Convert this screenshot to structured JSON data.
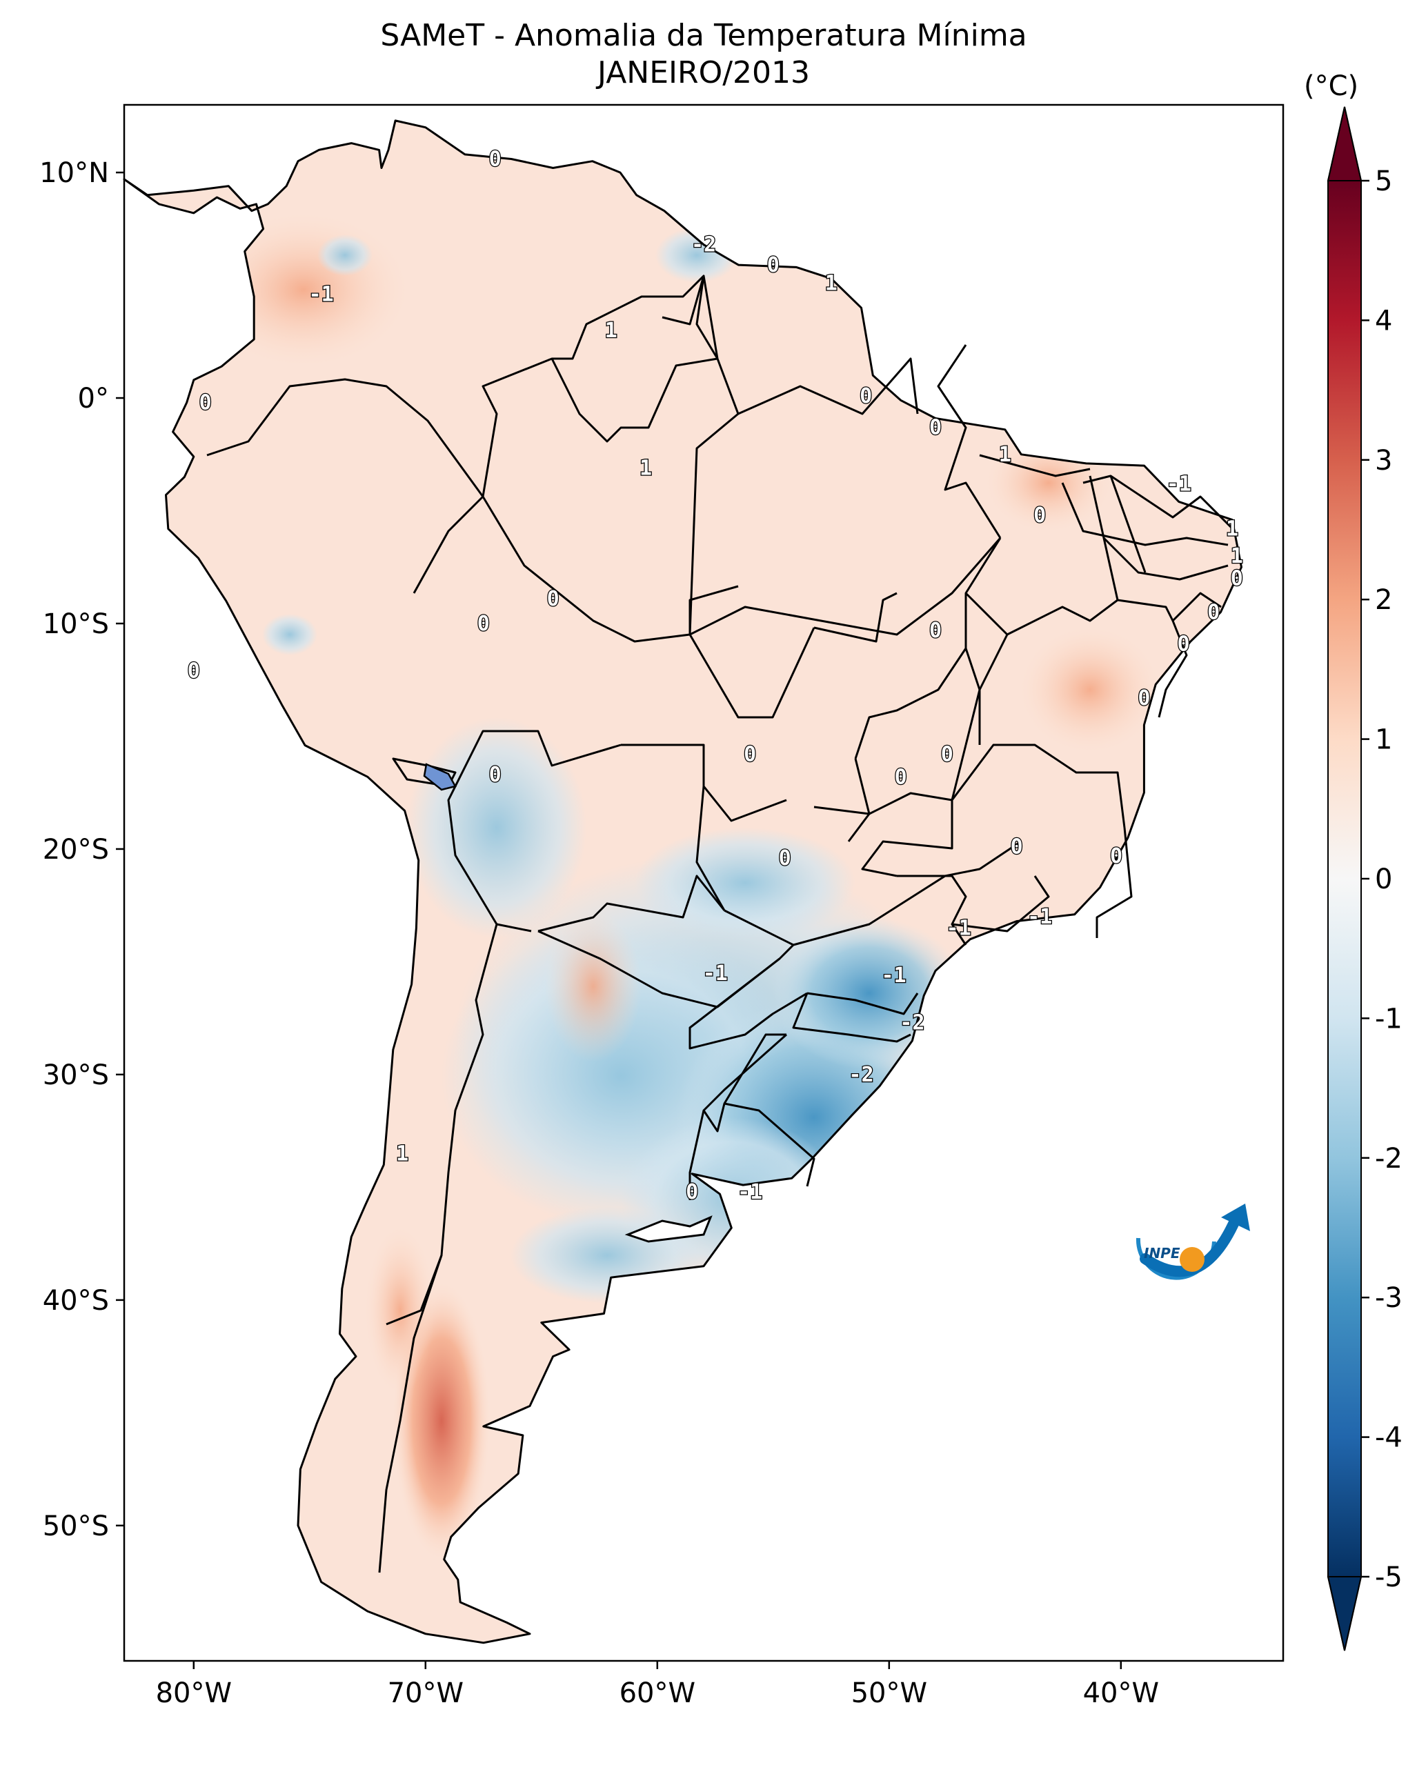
{
  "title": {
    "line1": "SAMeT - Anomalia da Temperatura Mínima",
    "line2": "JANEIRO/2013"
  },
  "map": {
    "type": "heatmap",
    "region": "South America",
    "lon_ticks": [
      "80°W",
      "70°W",
      "60°W",
      "50°W",
      "40°W"
    ],
    "lon_values": [
      -80,
      -70,
      -60,
      -50,
      -40
    ],
    "lat_ticks": [
      "10°N",
      "0°",
      "10°S",
      "20°S",
      "30°S",
      "40°S",
      "50°S"
    ],
    "lat_values": [
      10,
      0,
      -10,
      -20,
      -30,
      -40,
      -50
    ],
    "lon_range": [
      -83,
      -33
    ],
    "lat_range": [
      -56,
      13
    ],
    "contour_labels": [
      {
        "text": "0",
        "lon": -67,
        "lat": 10.6
      },
      {
        "text": "-2",
        "lon": -58,
        "lat": 6.8
      },
      {
        "text": "0",
        "lon": -55,
        "lat": 5.9
      },
      {
        "text": "1",
        "lon": -52.5,
        "lat": 5.1
      },
      {
        "text": "-1",
        "lon": -74.5,
        "lat": 4.6
      },
      {
        "text": "1",
        "lon": -62,
        "lat": 3.0
      },
      {
        "text": "0",
        "lon": -79.5,
        "lat": -0.2
      },
      {
        "text": "0",
        "lon": -51,
        "lat": 0.1
      },
      {
        "text": "0",
        "lon": -48,
        "lat": -1.3
      },
      {
        "text": "1",
        "lon": -60.5,
        "lat": -3.1
      },
      {
        "text": "1",
        "lon": -45,
        "lat": -2.5
      },
      {
        "text": "-1",
        "lon": -37.5,
        "lat": -3.8
      },
      {
        "text": "0",
        "lon": -43.5,
        "lat": -5.2
      },
      {
        "text": "1",
        "lon": -35.2,
        "lat": -5.8
      },
      {
        "text": "1",
        "lon": -35,
        "lat": -7.0
      },
      {
        "text": "0",
        "lon": -35,
        "lat": -8.0
      },
      {
        "text": "0",
        "lon": -36,
        "lat": -9.5
      },
      {
        "text": "0",
        "lon": -37.3,
        "lat": -10.9
      },
      {
        "text": "0",
        "lon": -64.5,
        "lat": -8.9
      },
      {
        "text": "0",
        "lon": -67.5,
        "lat": -10.0
      },
      {
        "text": "0",
        "lon": -48,
        "lat": -10.3
      },
      {
        "text": "0",
        "lon": -80,
        "lat": -12.1
      },
      {
        "text": "0",
        "lon": -39,
        "lat": -13.3
      },
      {
        "text": "0",
        "lon": -56,
        "lat": -15.8
      },
      {
        "text": "0",
        "lon": -47.5,
        "lat": -15.8
      },
      {
        "text": "0",
        "lon": -49.5,
        "lat": -16.8
      },
      {
        "text": "0",
        "lon": -67,
        "lat": -16.7
      },
      {
        "text": "0",
        "lon": -54.5,
        "lat": -20.4
      },
      {
        "text": "0",
        "lon": -44.5,
        "lat": -19.9
      },
      {
        "text": "0",
        "lon": -40.2,
        "lat": -20.3
      },
      {
        "text": "-1",
        "lon": -47,
        "lat": -23.5
      },
      {
        "text": "-1",
        "lon": -43.5,
        "lat": -23.0
      },
      {
        "text": "-1",
        "lon": -57.5,
        "lat": -25.5
      },
      {
        "text": "-1",
        "lon": -49.8,
        "lat": -25.6
      },
      {
        "text": "-2",
        "lon": -49,
        "lat": -27.7
      },
      {
        "text": "-2",
        "lon": -51.2,
        "lat": -30.0
      },
      {
        "text": "1",
        "lon": -71,
        "lat": -33.5
      },
      {
        "text": "0",
        "lon": -58.5,
        "lat": -35.2
      },
      {
        "text": "-1",
        "lon": -56,
        "lat": -35.2
      }
    ],
    "logo_text": "INPE"
  },
  "colorbar": {
    "unit": "(°C)",
    "ticks": [
      "5",
      "4",
      "3",
      "2",
      "1",
      "0",
      "-1",
      "-2",
      "-3",
      "-4",
      "-5"
    ],
    "range": [
      -5,
      5
    ],
    "colors": [
      "#053061",
      "#2166ac",
      "#4393c3",
      "#92c5de",
      "#d1e5f0",
      "#f7f7f7",
      "#fddbc7",
      "#f4a582",
      "#d6604d",
      "#b2182b",
      "#67001f"
    ]
  }
}
